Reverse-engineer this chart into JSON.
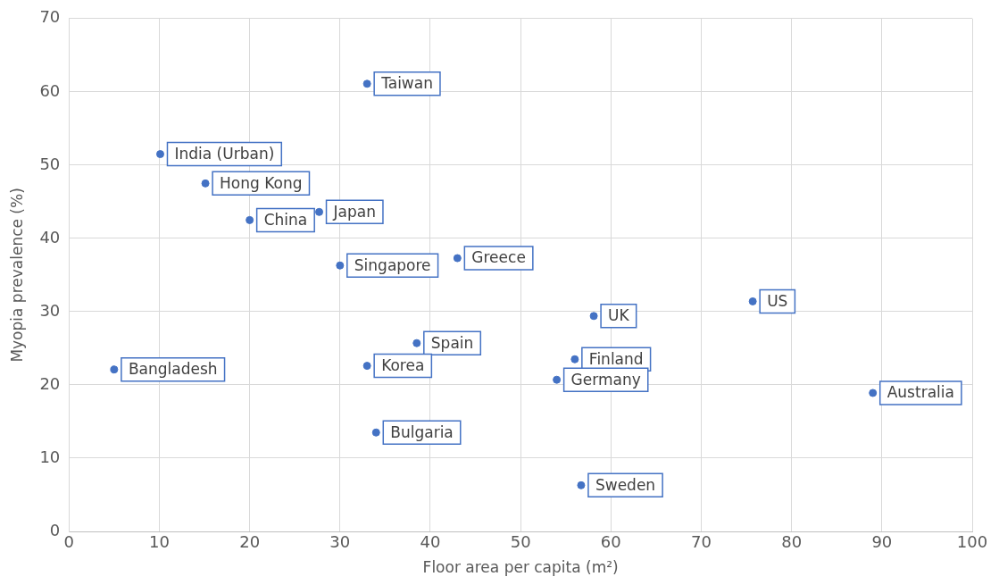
{
  "chart_data": {
    "type": "scatter",
    "xlabel": "Floor area per capita (m²)",
    "ylabel": "Myopia prevalence (%)",
    "xlim": [
      0,
      100
    ],
    "xticks": [
      0,
      10,
      20,
      30,
      40,
      50,
      60,
      70,
      80,
      90,
      100
    ],
    "ylim": [
      0,
      70
    ],
    "yticks": [
      0,
      10,
      20,
      30,
      40,
      50,
      60,
      70
    ],
    "grid": true,
    "legend": false,
    "marker": "circle",
    "series": [
      {
        "color": "#4472c4",
        "x": [
          33.0,
          10.1,
          15.1,
          20.0,
          27.7,
          30.0,
          43.0,
          58.1,
          75.7,
          38.5,
          33.0,
          5.0,
          56.0,
          54.0,
          89.0,
          34.0,
          56.7
        ],
        "values": [
          61.1,
          51.5,
          47.5,
          42.5,
          43.6,
          36.3,
          37.3,
          29.4,
          31.4,
          25.7,
          22.6,
          22.1,
          23.5,
          20.7,
          18.9,
          13.5,
          6.3
        ]
      }
    ],
    "annotations": [
      {
        "text": "Taiwan",
        "x": 33.0,
        "y": 61.1
      },
      {
        "text": "India (Urban)",
        "x": 10.1,
        "y": 51.5
      },
      {
        "text": "Hong Kong",
        "x": 15.1,
        "y": 47.5
      },
      {
        "text": "China",
        "x": 20.0,
        "y": 42.5
      },
      {
        "text": "Japan",
        "x": 27.7,
        "y": 43.6
      },
      {
        "text": "Singapore",
        "x": 30.0,
        "y": 36.3
      },
      {
        "text": "Greece",
        "x": 43.0,
        "y": 37.3
      },
      {
        "text": "UK",
        "x": 58.1,
        "y": 29.4
      },
      {
        "text": "US",
        "x": 75.7,
        "y": 31.4
      },
      {
        "text": "Spain",
        "x": 38.5,
        "y": 25.7
      },
      {
        "text": "Korea",
        "x": 33.0,
        "y": 22.6
      },
      {
        "text": "Bangladesh",
        "x": 5.0,
        "y": 22.1
      },
      {
        "text": "Finland",
        "x": 56.0,
        "y": 23.5
      },
      {
        "text": "Germany",
        "x": 54.0,
        "y": 20.7
      },
      {
        "text": "Australia",
        "x": 89.0,
        "y": 18.9
      },
      {
        "text": "Bulgaria",
        "x": 34.0,
        "y": 13.5
      },
      {
        "text": "Sweden",
        "x": 56.7,
        "y": 6.3
      }
    ]
  }
}
